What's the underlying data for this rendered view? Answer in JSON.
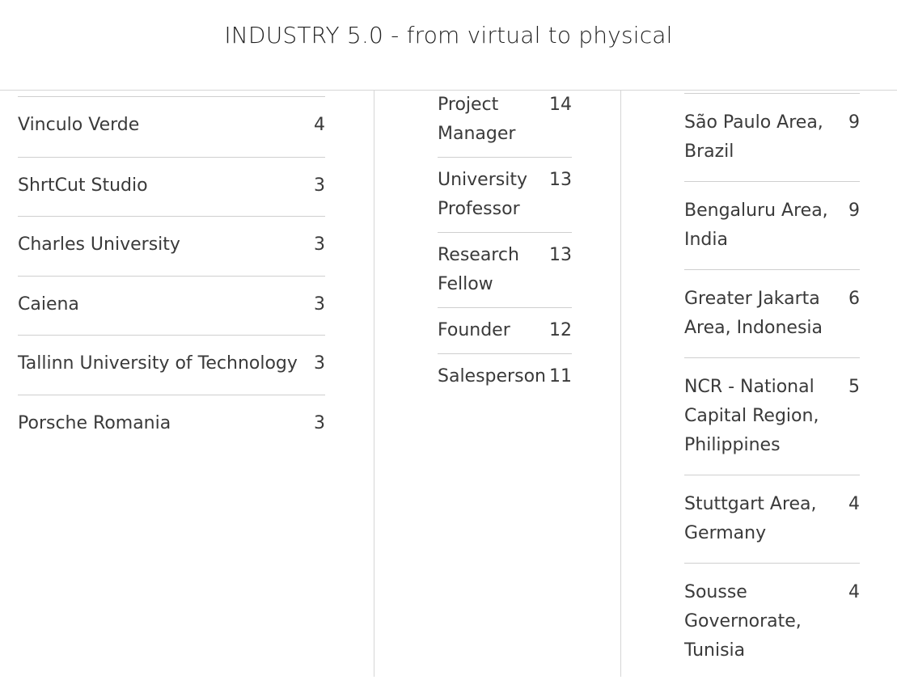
{
  "header": {
    "title": "INDUSTRY 5.0 - from virtual to physical"
  },
  "companies": [
    {
      "label": "Vinculo Verde",
      "count": "4"
    },
    {
      "label": "ShrtCut Studio",
      "count": "3"
    },
    {
      "label": "Charles University",
      "count": "3"
    },
    {
      "label": "Caiena",
      "count": "3"
    },
    {
      "label": "Tallinn University of Technology",
      "count": "3"
    },
    {
      "label": "Porsche Romania",
      "count": "3"
    }
  ],
  "job_titles": [
    {
      "label": "Project Manager",
      "count": "14"
    },
    {
      "label": "University Professor",
      "count": "13"
    },
    {
      "label": "Research Fellow",
      "count": "13"
    },
    {
      "label": "Founder",
      "count": "12"
    },
    {
      "label": "Salesperson",
      "count": "11"
    }
  ],
  "locations": [
    {
      "label": "São Paulo Area, Brazil",
      "count": "9"
    },
    {
      "label": "Bengaluru Area, India",
      "count": "9"
    },
    {
      "label": "Greater Jakarta Area, Indonesia",
      "count": "6"
    },
    {
      "label": "NCR - National Capital Region, Philippines",
      "count": "5"
    },
    {
      "label": "Stuttgart Area, Germany",
      "count": "4"
    },
    {
      "label": "Sousse Governorate, Tunisia",
      "count": "4"
    }
  ]
}
